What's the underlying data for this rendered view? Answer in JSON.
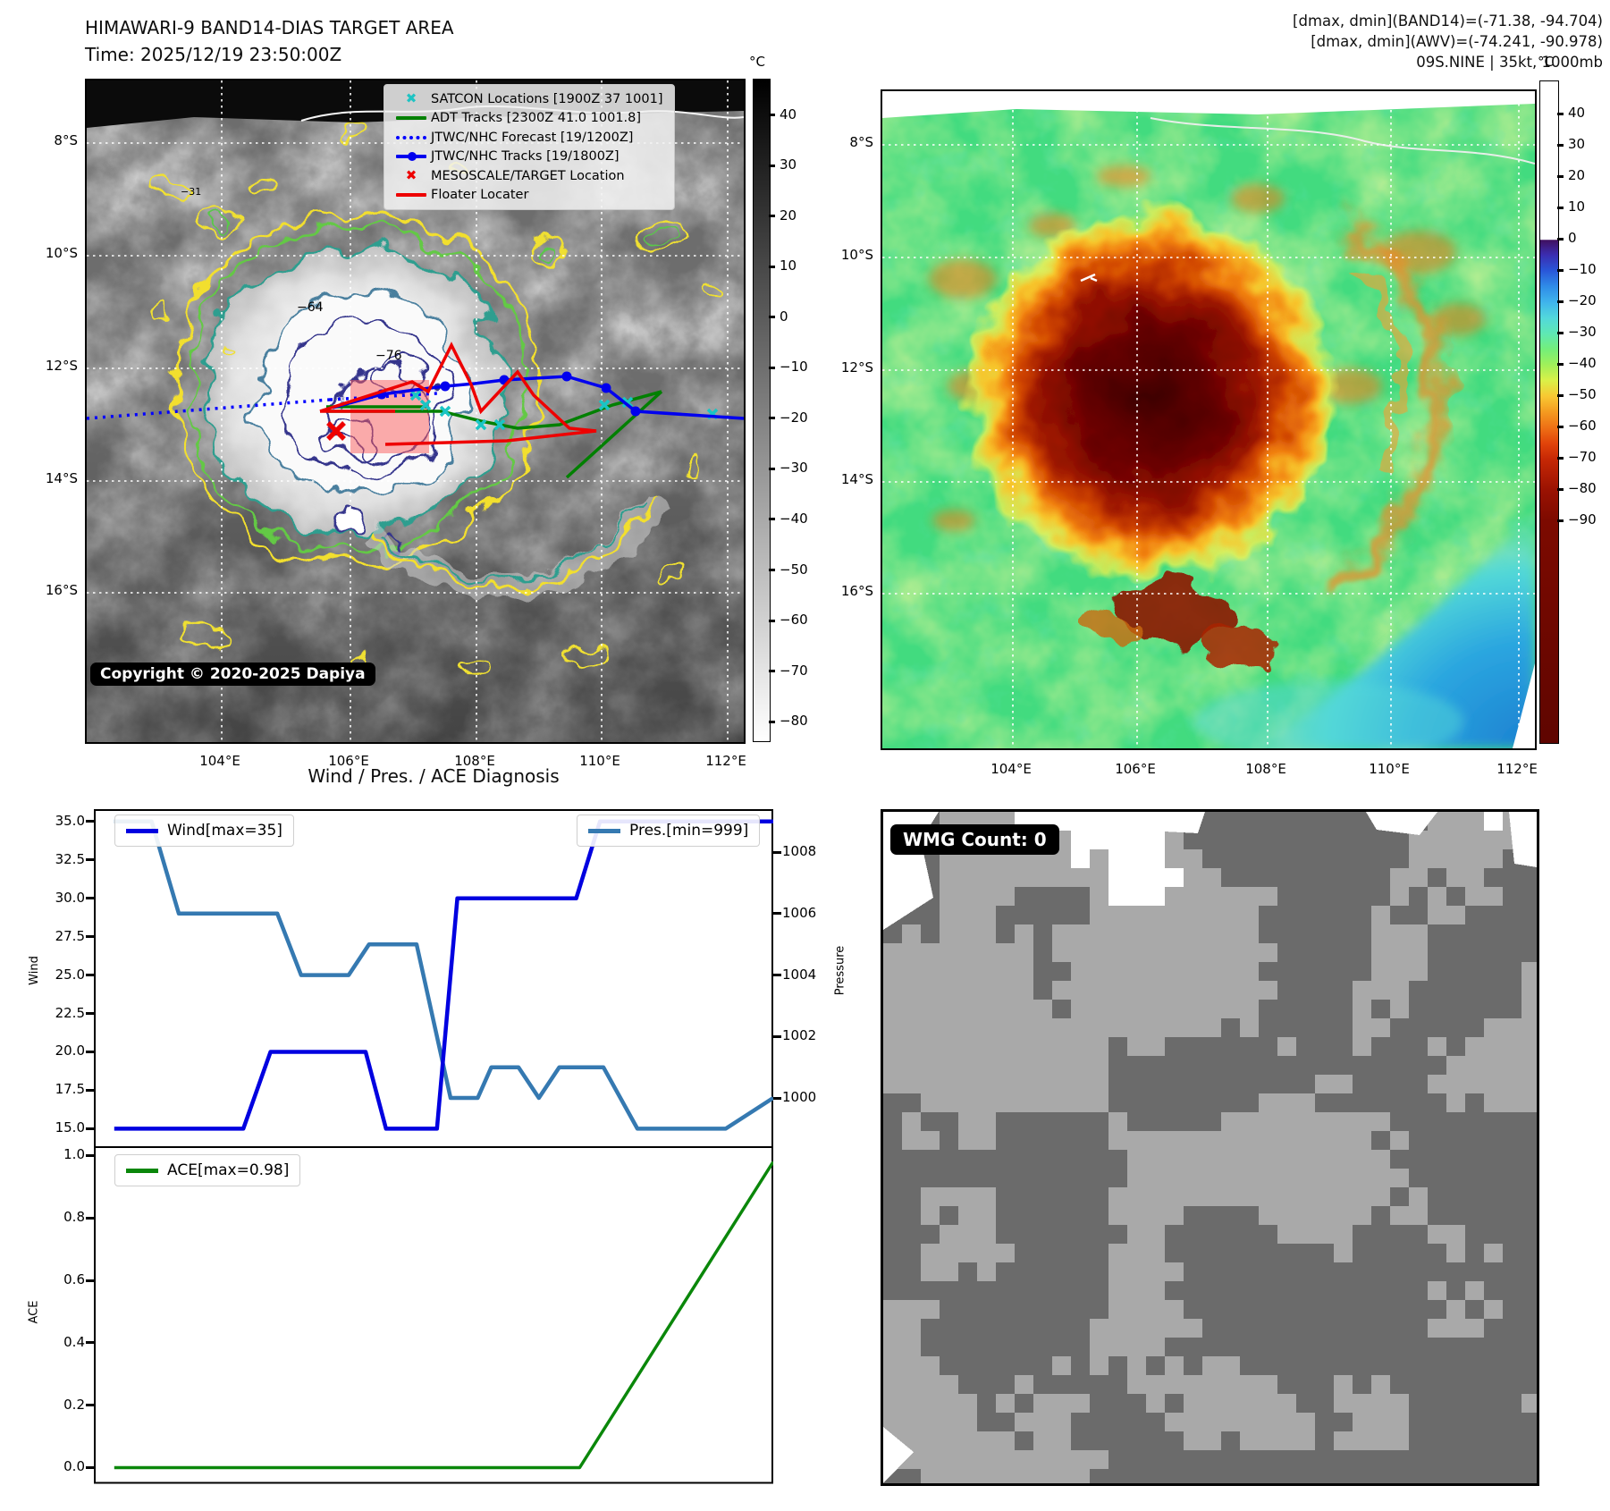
{
  "header_left": {
    "title": "HIMAWARI-9 BAND14-DIAS TARGET AREA",
    "time": "Time: 2025/12/19 23:50:00Z"
  },
  "header_right": {
    "line1": "[dmax, dmin](BAND14)=(-71.38, -94.704)",
    "line2": "[dmax, dmin](AWV)=(-74.241, -90.978)",
    "line3": "09S.NINE | 35kt, 1000mb"
  },
  "band14_map": {
    "legend": [
      {
        "label": "SATCON Locations [1900Z 37 1001]",
        "marker": "cyan-x",
        "color": "#1fc3c3"
      },
      {
        "label": "ADT Tracks [2300Z 41.0 1001.8]",
        "marker": "line",
        "color": "#008000"
      },
      {
        "label": "JTWC/NHC Forecast [19/1200Z]",
        "marker": "dotted",
        "color": "#0000ff"
      },
      {
        "label": "JTWC/NHC Tracks [19/1800Z]",
        "marker": "line-dot",
        "color": "#0000ee"
      },
      {
        "label": "MESOSCALE/TARGET Location",
        "marker": "red-x",
        "color": "#ee0000"
      },
      {
        "label": "Floater Locater",
        "marker": "line",
        "color": "#ee0000"
      }
    ],
    "copyright": "Copyright © 2020-2025 Dapiya",
    "contour_labels": [
      {
        "text": "−64",
        "color": "#2c8ea0"
      },
      {
        "text": "−76",
        "color": "#3a3a8a"
      },
      {
        "text": "−31",
        "color": "#cfc12a"
      }
    ],
    "lat_ticks": [
      "8°S",
      "10°S",
      "12°S",
      "14°S",
      "16°S"
    ],
    "lon_ticks": [
      "104°E",
      "106°E",
      "108°E",
      "110°E",
      "112°E"
    ],
    "colorbar": {
      "unit": "°C",
      "ticks": [
        40,
        30,
        20,
        10,
        0,
        -10,
        -20,
        -30,
        -40,
        -50,
        -60,
        -70,
        -80
      ]
    }
  },
  "awv_map": {
    "lat_ticks": [
      "8°S",
      "10°S",
      "12°S",
      "14°S",
      "16°S"
    ],
    "lon_ticks": [
      "104°E",
      "106°E",
      "108°E",
      "110°E",
      "112°E"
    ],
    "colorbar": {
      "unit": "°C",
      "ticks": [
        40,
        30,
        20,
        10,
        0,
        -10,
        -20,
        -30,
        -40,
        -50,
        -60,
        -70,
        -80,
        -90
      ]
    }
  },
  "wmg": {
    "count_label": "WMG Count: 0"
  },
  "chart_data": {
    "type": "line",
    "title": "Wind / Pres. / ACE Diagnosis",
    "x_axis": "time (no tick labels shown)",
    "x_lim": [
      0,
      1
    ],
    "subplots": [
      {
        "left_axis": {
          "label": "Wind",
          "ticks": [
            35,
            32.5,
            30,
            27.5,
            25,
            22.5,
            20,
            17.5,
            15
          ],
          "lim": [
            13.8,
            35.8
          ]
        },
        "right_axis": {
          "label": "Pressure",
          "ticks": [
            1008,
            1006,
            1004,
            1002,
            1000
          ],
          "lim": [
            998.4,
            1009.4
          ]
        },
        "series": [
          {
            "name": "Wind[max=35]",
            "color": "#0000e0",
            "axis": "left",
            "x": [
              0.03,
              0.22,
              0.26,
              0.4,
              0.43,
              0.505,
              0.535,
              0.71,
              0.745,
              1.0
            ],
            "y": [
              15,
              15,
              20,
              20,
              15,
              15,
              30,
              30,
              35,
              35
            ]
          },
          {
            "name": "Pres.[min=999]",
            "color": "#3579b1",
            "axis": "right",
            "x": [
              0.03,
              0.085,
              0.125,
              0.27,
              0.305,
              0.375,
              0.405,
              0.475,
              0.525,
              0.565,
              0.585,
              0.625,
              0.655,
              0.685,
              0.75,
              0.8,
              0.93,
              1.0
            ],
            "y": [
              1009,
              1009,
              1006,
              1006,
              1004,
              1004,
              1005,
              1005,
              1000,
              1000,
              1001,
              1001,
              1000,
              1001,
              1001,
              999,
              999,
              1000
            ]
          }
        ]
      },
      {
        "left_axis": {
          "label": "ACE",
          "ticks": [
            1.0,
            0.8,
            0.6,
            0.4,
            0.2,
            0.0
          ],
          "lim": [
            -0.053,
            1.027
          ]
        },
        "series": [
          {
            "name": "ACE[max=0.98]",
            "color": "#0a870a",
            "axis": "left",
            "x": [
              0.03,
              0.715,
              1.0
            ],
            "y": [
              0.0,
              0.0,
              0.98
            ]
          }
        ]
      }
    ]
  }
}
